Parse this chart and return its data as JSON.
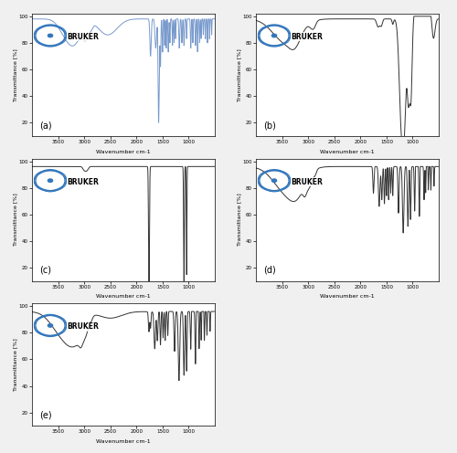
{
  "x_label": "Wavenumber cm-1",
  "y_label": "Transmittance [%]",
  "subplot_labels": [
    "(a)",
    "(b)",
    "(c)",
    "(d)",
    "(e)"
  ],
  "colors": {
    "a": "#7799cc",
    "bcde": "#333333"
  },
  "bruker_color": "#3377bb",
  "line_width": 0.7
}
